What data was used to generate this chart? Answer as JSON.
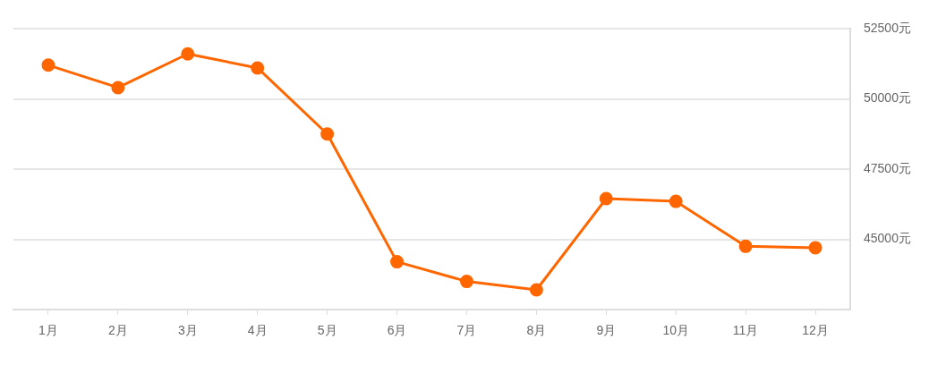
{
  "chart_data": {
    "type": "line",
    "categories": [
      "1月",
      "2月",
      "3月",
      "4月",
      "5月",
      "6月",
      "7月",
      "8月",
      "9月",
      "10月",
      "11月",
      "12月"
    ],
    "series": [
      {
        "color": "#ff6600",
        "values": [
          51200,
          50400,
          51600,
          51100,
          48750,
          44200,
          43500,
          43200,
          46450,
          46350,
          44750,
          44700
        ]
      }
    ],
    "ylim": [
      42500,
      52500
    ],
    "yticks": [
      {
        "value": 45000,
        "label": "45000元"
      },
      {
        "value": 47500,
        "label": "47500元"
      },
      {
        "value": 50000,
        "label": "50000元"
      },
      {
        "value": 52500,
        "label": "52500元"
      }
    ],
    "grid": "y",
    "legend": false,
    "marker": "circle",
    "line_style": "solid"
  }
}
